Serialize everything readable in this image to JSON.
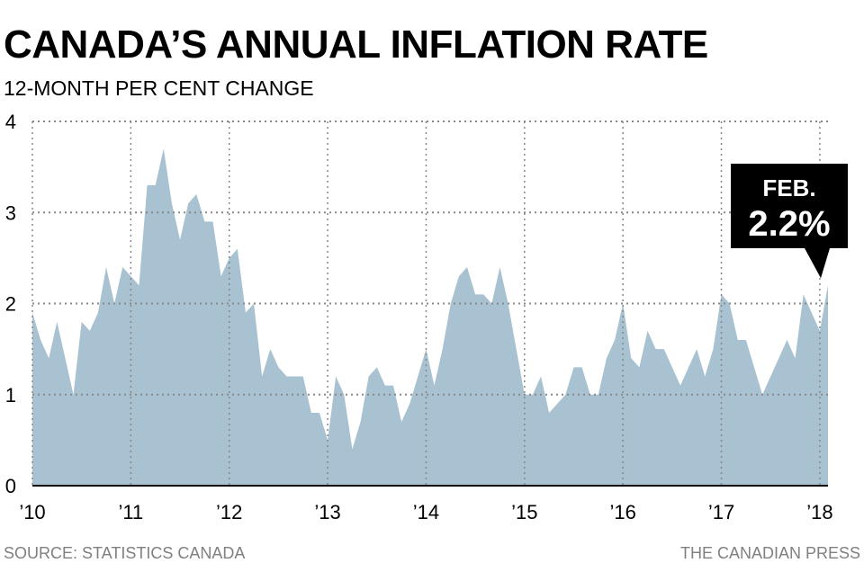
{
  "header": {
    "title": "CANADA’S ANNUAL INFLATION RATE",
    "subtitle": "12-MONTH PER CENT CHANGE"
  },
  "footer": {
    "source": "SOURCE: STATISTICS CANADA",
    "credit": "THE CANADIAN PRESS"
  },
  "colors": {
    "area": "#a8c2d2",
    "grid": "#888888",
    "callout_bg": "#000000"
  },
  "callout": {
    "label": "FEB.",
    "value": "2.2%"
  },
  "chart_data": {
    "type": "area",
    "title": "CANADA’S ANNUAL INFLATION RATE",
    "subtitle": "12-MONTH PER CENT CHANGE",
    "ylim": [
      0,
      4
    ],
    "yticks": [
      "0",
      "1",
      "2",
      "3",
      "4"
    ],
    "xticks": [
      "’10",
      "’11",
      "’12",
      "’13",
      "’14",
      "’15",
      "’16",
      "’17",
      "’18"
    ],
    "grid": true,
    "x_start": "2010-01",
    "x_end": "2018-02",
    "series": [
      {
        "values": [
          1.9,
          1.6,
          1.4,
          1.8,
          1.4,
          1.0,
          1.8,
          1.7,
          1.9,
          2.4,
          2.0,
          2.4,
          2.3,
          2.2,
          3.3,
          3.3,
          3.7,
          3.1,
          2.7,
          3.1,
          3.2,
          2.9,
          2.9,
          2.3,
          2.5,
          2.6,
          1.9,
          2.0,
          1.2,
          1.5,
          1.3,
          1.2,
          1.2,
          1.2,
          0.8,
          0.8,
          0.5,
          1.2,
          1.0,
          0.4,
          0.7,
          1.2,
          1.3,
          1.1,
          1.1,
          0.7,
          0.9,
          1.2,
          1.5,
          1.1,
          1.5,
          2.0,
          2.3,
          2.4,
          2.1,
          2.1,
          2.0,
          2.4,
          2.0,
          1.5,
          1.0,
          1.0,
          1.2,
          0.8,
          0.9,
          1.0,
          1.3,
          1.3,
          1.0,
          1.0,
          1.4,
          1.6,
          2.0,
          1.4,
          1.3,
          1.7,
          1.5,
          1.5,
          1.3,
          1.1,
          1.3,
          1.5,
          1.2,
          1.5,
          2.1,
          2.0,
          1.6,
          1.6,
          1.3,
          1.0,
          1.2,
          1.4,
          1.6,
          1.4,
          2.1,
          1.9,
          1.7,
          2.2
        ]
      }
    ]
  }
}
